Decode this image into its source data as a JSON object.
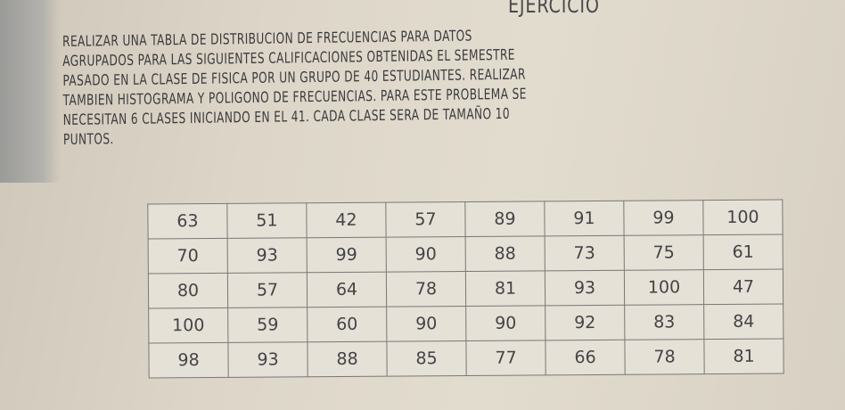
{
  "title": "EJERCICIO",
  "paragraph_lines": [
    "REALIZAR UNA TABLA DE DISTRIBUCION DE FRECUENCIAS PARA DATOS",
    "AGRUPADOS PARA LAS SIGUIENTES CALIFICACIONES OBTENIDAS EL SEMESTRE",
    "PASADO EN LA CLASE DE FISICA POR UN GRUPO DE 40 ESTUDIANTES. REALIZAR",
    "TAMBIEN HISTOGRAMA Y POLIGONO DE FRECUENCIAS. PARA ESTE PROBLEMA SE",
    "NECESITAN 6 CLASES INICIANDO EN EL 41. CADA CLASE SERA DE TAMAÑO 10",
    "PUNTOS."
  ],
  "table": [
    [
      "63",
      "51",
      "42",
      "57",
      "89",
      "91",
      "99",
      "100"
    ],
    [
      "70",
      "93",
      "99",
      "90",
      "88",
      "73",
      "75",
      "61"
    ],
    [
      "80",
      "57",
      "64",
      "78",
      "81",
      "93",
      "100",
      "47"
    ],
    [
      "100",
      "59",
      "60",
      "90",
      "90",
      "92",
      "83",
      "84"
    ],
    [
      "98",
      "93",
      "88",
      "85",
      "77",
      "66",
      "78",
      "81"
    ]
  ]
}
